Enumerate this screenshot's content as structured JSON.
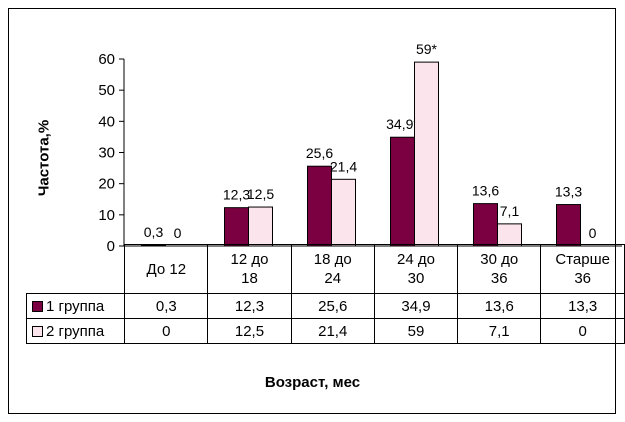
{
  "chart_data": {
    "type": "bar",
    "categories": [
      "До 12",
      "12 до 18",
      "18 до 24",
      "24 до 30",
      "30 до 36",
      "Старше 36"
    ],
    "category_lines": [
      [
        "До 12"
      ],
      [
        "12 до",
        "18"
      ],
      [
        "18 до",
        "24"
      ],
      [
        "24 до",
        "30"
      ],
      [
        "30 до",
        "36"
      ],
      [
        "Старше",
        "36"
      ]
    ],
    "series": [
      {
        "name": "1 группа",
        "values": [
          0.3,
          12.3,
          25.6,
          34.9,
          13.6,
          13.3
        ],
        "color": "#7b0041",
        "labels": [
          "0,3",
          "12,3",
          "25,6",
          "34,9*",
          "13,6",
          "13,3"
        ],
        "table_values": [
          "0,3",
          "12,3",
          "25,6",
          "34,9",
          "13,6",
          "13,3"
        ]
      },
      {
        "name": "2 группа",
        "values": [
          0,
          12.5,
          21.4,
          59,
          7.1,
          0
        ],
        "color": "#fce4ec",
        "labels": [
          "0",
          "12,5",
          "21,4",
          "59*",
          "7,1",
          "0"
        ],
        "table_values": [
          "0",
          "12,5",
          "21,4",
          "59",
          "7,1",
          "0"
        ]
      }
    ],
    "yticks": [
      0,
      10,
      20,
      30,
      40,
      50,
      60
    ],
    "ylim": [
      0,
      60
    ],
    "ylabel": "Частота,%",
    "xlabel": "Возраст, мес",
    "legend": "data-table"
  }
}
